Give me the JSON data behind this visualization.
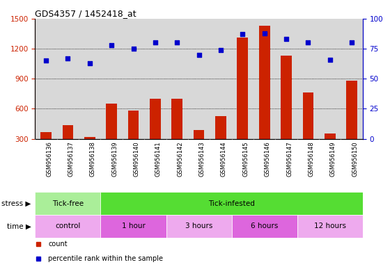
{
  "title": "GDS4357 / 1452418_at",
  "samples": [
    "GSM956136",
    "GSM956137",
    "GSM956138",
    "GSM956139",
    "GSM956140",
    "GSM956141",
    "GSM956142",
    "GSM956143",
    "GSM956144",
    "GSM956145",
    "GSM956146",
    "GSM956147",
    "GSM956148",
    "GSM956149",
    "GSM956150"
  ],
  "counts": [
    370,
    440,
    320,
    650,
    580,
    700,
    700,
    390,
    530,
    1310,
    1430,
    1130,
    760,
    350,
    880
  ],
  "percentiles": [
    65,
    67,
    63,
    78,
    75,
    80,
    80,
    70,
    74,
    87,
    88,
    83,
    80,
    66,
    80
  ],
  "ylim_left": [
    300,
    1500
  ],
  "ylim_right": [
    0,
    100
  ],
  "yticks_left": [
    300,
    600,
    900,
    1200,
    1500
  ],
  "yticks_right": [
    0,
    25,
    50,
    75,
    100
  ],
  "bar_color": "#cc2200",
  "dot_color": "#0000cc",
  "bg_color": "#d8d8d8",
  "stress_groups": [
    {
      "label": "Tick-free",
      "start": 0,
      "end": 3,
      "color": "#aaee99"
    },
    {
      "label": "Tick-infested",
      "start": 3,
      "end": 15,
      "color": "#55dd33"
    }
  ],
  "time_groups": [
    {
      "label": "control",
      "start": 0,
      "end": 3,
      "color": "#eeaaee"
    },
    {
      "label": "1 hour",
      "start": 3,
      "end": 6,
      "color": "#dd66dd"
    },
    {
      "label": "3 hours",
      "start": 6,
      "end": 9,
      "color": "#eeaaee"
    },
    {
      "label": "6 hours",
      "start": 9,
      "end": 12,
      "color": "#dd66dd"
    },
    {
      "label": "12 hours",
      "start": 12,
      "end": 15,
      "color": "#eeaaee"
    }
  ],
  "legend_items": [
    {
      "label": "count",
      "color": "#cc2200"
    },
    {
      "label": "percentile rank within the sample",
      "color": "#0000cc"
    }
  ]
}
